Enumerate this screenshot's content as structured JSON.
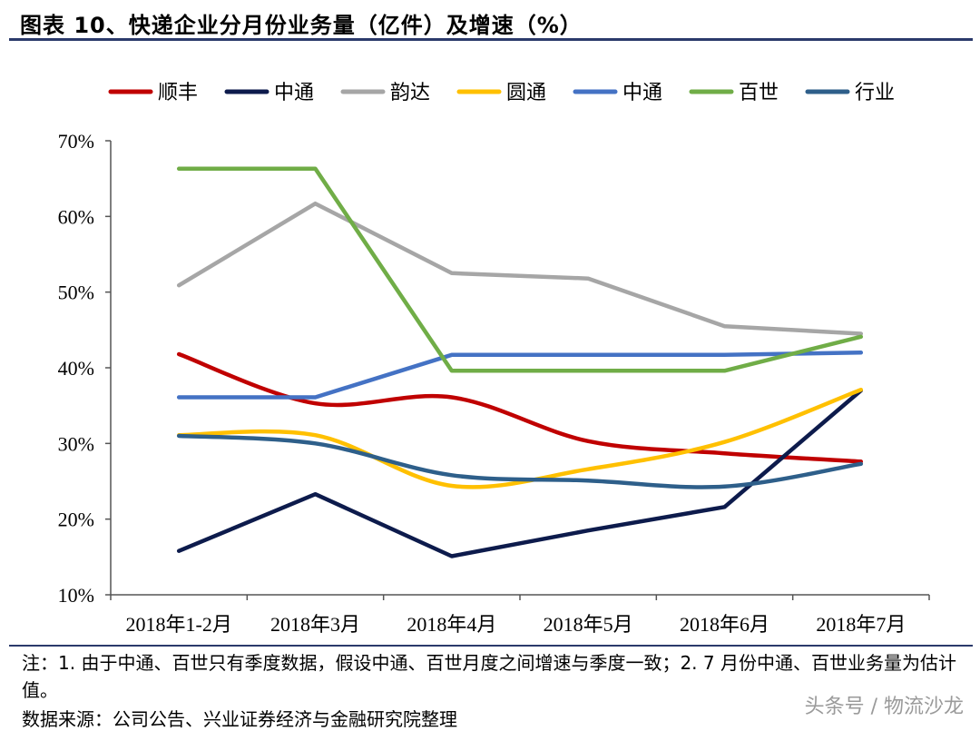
{
  "header": {
    "title": "图表 10、快递企业分月份业务量（亿件）及增速（%）"
  },
  "footer": {
    "note": "注：1. 由于中通、百世只有季度数据，假设中通、百世月度之间增速与季度一致；2. 7 月份中通、百世业务量为估计值。",
    "source": "数据来源：公司公告、兴业证券经济与金融研究院整理",
    "watermark": "头条号 / 物流沙龙"
  },
  "chart_data": {
    "type": "line",
    "title": "",
    "xlabel": "",
    "ylabel": "",
    "categories": [
      "2018年1-2月",
      "2018年3月",
      "2018年4月",
      "2018年5月",
      "2018年6月",
      "2018年7月"
    ],
    "yticks": [
      "10%",
      "20%",
      "30%",
      "40%",
      "50%",
      "60%",
      "70%"
    ],
    "ylim": [
      10,
      70
    ],
    "unit": "%",
    "legend_position": "top",
    "grid": false,
    "series": [
      {
        "name": "顺丰",
        "color": "#c00000",
        "values": [
          41.8,
          35.3,
          36.1,
          30.3,
          28.7,
          27.6
        ],
        "smooth": true
      },
      {
        "name": "中通",
        "color": "#0d1b4c",
        "values": [
          15.8,
          23.3,
          15.1,
          18.5,
          21.6,
          37.0
        ],
        "smooth": false
      },
      {
        "name": "韵达",
        "color": "#a6a6a6",
        "values": [
          50.9,
          61.7,
          52.5,
          51.8,
          45.5,
          44.5
        ],
        "smooth": false
      },
      {
        "name": "圆通",
        "color": "#ffc000",
        "values": [
          31.1,
          31.1,
          24.4,
          26.6,
          30.2,
          37.1
        ],
        "smooth": true
      },
      {
        "name": "中通",
        "color": "#4472c4",
        "values": [
          36.1,
          36.1,
          41.7,
          41.7,
          41.7,
          42.0
        ],
        "smooth": false
      },
      {
        "name": "百世",
        "color": "#70ad47",
        "values": [
          66.3,
          66.3,
          39.6,
          39.6,
          39.6,
          44.1
        ],
        "smooth": false
      },
      {
        "name": "行业",
        "color": "#2e5f8a",
        "values": [
          31.0,
          30.0,
          25.8,
          25.1,
          24.3,
          27.3
        ],
        "smooth": true
      }
    ]
  }
}
